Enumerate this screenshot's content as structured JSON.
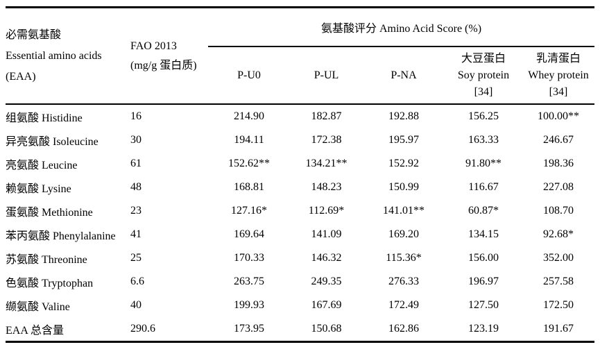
{
  "colors": {
    "background": "#ffffff",
    "text": "#000000",
    "rule": "#000000"
  },
  "table": {
    "header": {
      "col1_lines": [
        "必需氨基酸",
        "Essential amino acids",
        "(EAA)"
      ],
      "col2_lines": [
        "FAO 2013",
        "(mg/g 蛋白质)"
      ],
      "group_title": "氨基酸评分  Amino Acid Score (%)",
      "sub": {
        "p_u0": "P-U0",
        "p_ul": "P-UL",
        "p_na": "P-NA",
        "soy_lines": [
          "大豆蛋白",
          "Soy protein",
          "[34]"
        ],
        "whey_lines": [
          "乳清蛋白",
          "Whey protein",
          "[34]"
        ]
      }
    },
    "rows": [
      {
        "name": "组氨酸 Histidine",
        "fao": "16",
        "values": [
          "214.90",
          "182.87",
          "192.88",
          "156.25",
          "100.00**"
        ]
      },
      {
        "name": "异亮氨酸 Isoleucine",
        "fao": "30",
        "values": [
          "194.11",
          "172.38",
          "195.97",
          "163.33",
          "246.67"
        ]
      },
      {
        "name": "亮氨酸 Leucine",
        "fao": "61",
        "values": [
          "152.62**",
          "134.21**",
          "152.92",
          "91.80**",
          "198.36"
        ]
      },
      {
        "name": "赖氨酸 Lysine",
        "fao": "48",
        "values": [
          "168.81",
          "148.23",
          "150.99",
          "116.67",
          "227.08"
        ]
      },
      {
        "name": "蛋氨酸 Methionine",
        "fao": "23",
        "values": [
          "127.16*",
          "112.69*",
          "141.01**",
          "60.87*",
          "108.70"
        ]
      },
      {
        "name": "苯丙氨酸 Phenylalanine",
        "fao": "41",
        "values": [
          "169.64",
          "141.09",
          "169.20",
          "134.15",
          "92.68*"
        ]
      },
      {
        "name": "苏氨酸 Threonine",
        "fao": "25",
        "values": [
          "170.33",
          "146.32",
          "115.36*",
          "156.00",
          "352.00"
        ]
      },
      {
        "name": "色氨酸 Tryptophan",
        "fao": "6.6",
        "values": [
          "263.75",
          "249.35",
          "276.33",
          "196.97",
          "257.58"
        ]
      },
      {
        "name": "缬氨酸 Valine",
        "fao": "40",
        "values": [
          "199.93",
          "167.69",
          "172.49",
          "127.50",
          "172.50"
        ]
      },
      {
        "name": "EAA 总含量",
        "fao": "290.6",
        "values": [
          "173.95",
          "150.68",
          "162.86",
          "123.19",
          "191.67"
        ]
      }
    ]
  }
}
